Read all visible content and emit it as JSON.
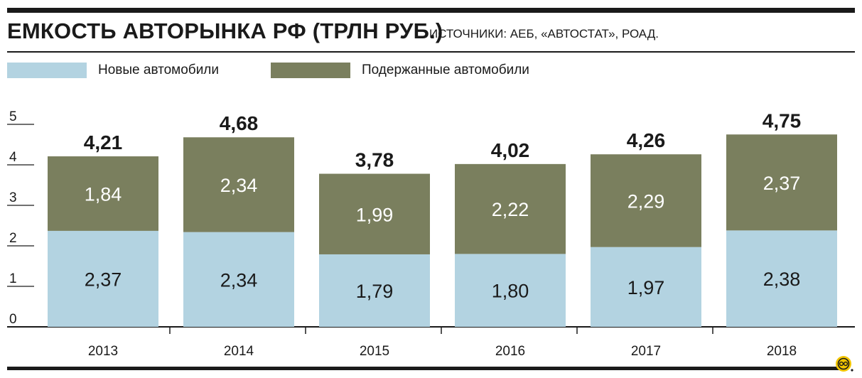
{
  "title": "ЕМКОСТЬ АВТОРЫНКА РФ (ТРЛН РУБ.)",
  "source": "ИСТОЧНИКИ: АЕБ, «АВТОСТАТ», РОАД.",
  "colors": {
    "new": "#b3d3e1",
    "used": "#7a7f5e",
    "text": "#1a1a1a",
    "logo": "#f2c500"
  },
  "chart_data": {
    "type": "bar",
    "stacked": true,
    "categories": [
      "2013",
      "2014",
      "2015",
      "2016",
      "2017",
      "2018"
    ],
    "series": [
      {
        "name": "Новые автомобили",
        "values": [
          2.37,
          2.34,
          1.79,
          1.8,
          1.97,
          2.38
        ],
        "labels": [
          "2,37",
          "2,34",
          "1,79",
          "1,80",
          "1,97",
          "2,38"
        ]
      },
      {
        "name": "Подержанные автомобили",
        "values": [
          1.84,
          2.34,
          1.99,
          2.22,
          2.29,
          2.37
        ],
        "labels": [
          "1,84",
          "2,34",
          "1,99",
          "2,22",
          "2,29",
          "2,37"
        ]
      }
    ],
    "totals": [
      4.21,
      4.68,
      3.78,
      4.02,
      4.26,
      4.75
    ],
    "total_labels": [
      "4,21",
      "4,68",
      "3,78",
      "4,02",
      "4,26",
      "4,75"
    ],
    "yticks": [
      "0",
      "1",
      "2",
      "3",
      "4",
      "5"
    ],
    "ylim": [
      0,
      5
    ],
    "legend": "top-left"
  }
}
